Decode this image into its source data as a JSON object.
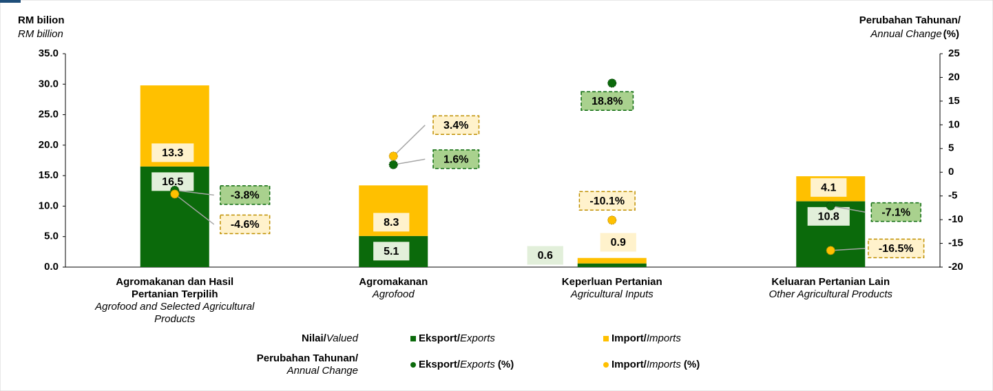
{
  "chart_data": {
    "type": "bar",
    "stacked": true,
    "y_label": "RM bilion",
    "y_label_en": "RM billion",
    "y2_label": "Perubahan Tahunan/",
    "y2_label_en": "Annual Change",
    "y2_unit": "(%)",
    "categories": [
      "Agromakanan dan Hasil Pertanian Terpilih",
      "Agromakanan",
      "Keperluan Pertanian",
      "Keluaran Pertanian Lain"
    ],
    "categories_en": [
      "Agrofood and Selected Agricultural Products",
      "Agrofood",
      "Agricultural Inputs",
      "Other Agricultural Products"
    ],
    "ylim": [
      0,
      35
    ],
    "yticks": [
      {
        "value": 0,
        "label": "0.0"
      },
      {
        "value": 5,
        "label": "5.0"
      },
      {
        "value": 10,
        "label": "10.0"
      },
      {
        "value": 15,
        "label": "15.0"
      },
      {
        "value": 20,
        "label": "20.0"
      },
      {
        "value": 25,
        "label": "25.0"
      },
      {
        "value": 30,
        "label": "30.0"
      },
      {
        "value": 35,
        "label": "35.0"
      }
    ],
    "y2lim": [
      -20,
      25
    ],
    "y2ticks": [
      -20,
      -15,
      -10,
      -5,
      0,
      5,
      10,
      15,
      20,
      25
    ],
    "legend_groups": [
      {
        "name": "Nilai/",
        "name_en": "Valued"
      },
      {
        "name": "Perubahan Tahunan/",
        "name_en": "Annual Change"
      }
    ],
    "series": [
      {
        "name": "Eksport/",
        "name_en": "Exports",
        "color": "#0b6a0b",
        "label_color": "#e2efda",
        "values": [
          16.5,
          5.1,
          0.6,
          10.8
        ]
      },
      {
        "name": "Import/",
        "name_en": "Imports",
        "color": "#ffc000",
        "label_color": "#fff2cc",
        "values": [
          13.3,
          8.3,
          0.9,
          4.1
        ]
      },
      {
        "name": "Eksport/",
        "name_en": "Exports",
        "unit": "(%)",
        "type": "scatter",
        "axis": "y2",
        "color": "#0b6a0b",
        "label_color": "#a9d18e",
        "values": [
          -3.8,
          1.6,
          18.8,
          -7.1
        ],
        "value_labels": [
          "-3.8%",
          "1.6%",
          "18.8%",
          "-7.1%"
        ]
      },
      {
        "name": "Import/",
        "name_en": "Imports",
        "unit": "(%)",
        "type": "scatter",
        "axis": "y2",
        "color": "#ffc000",
        "label_color": "#fff2cc",
        "values": [
          -4.6,
          3.4,
          -10.1,
          -16.5
        ],
        "value_labels": [
          "-4.6%",
          "3.4%",
          "-10.1%",
          "-16.5%"
        ]
      }
    ]
  }
}
